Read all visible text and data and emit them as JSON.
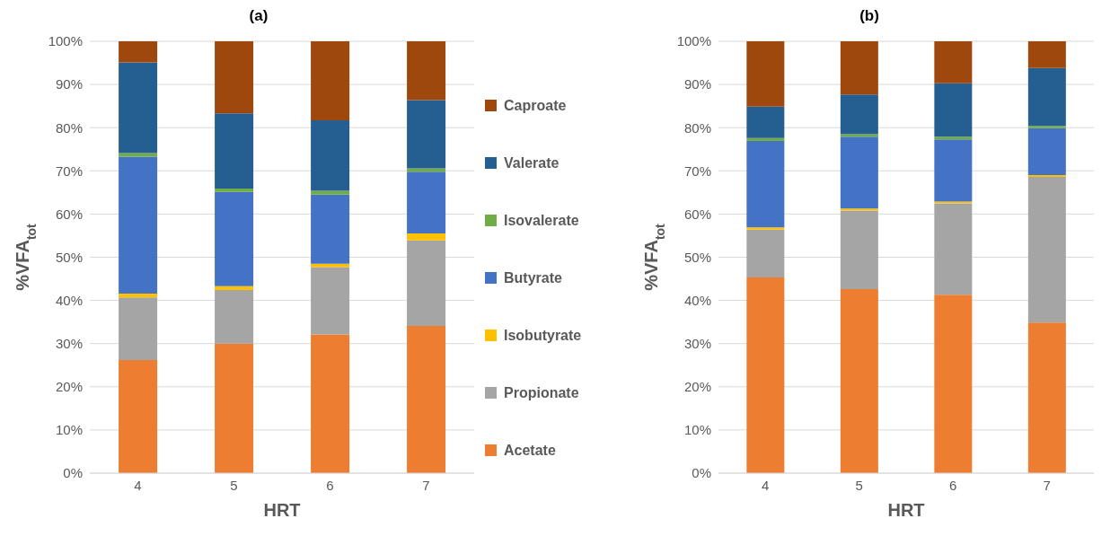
{
  "chart_data": [
    {
      "type": "bar",
      "title": "(a)",
      "xlabel": "HRT",
      "ylabel": "%VFA$_{tot}$",
      "categories": [
        "4",
        "5",
        "6",
        "7"
      ],
      "stacked": true,
      "legend": "right",
      "grid": "y",
      "ylim": [
        0,
        100
      ],
      "yticks": [
        {
          "value": 0,
          "label": "0%"
        },
        {
          "value": 10,
          "label": "10%"
        },
        {
          "value": 20,
          "label": "20%"
        },
        {
          "value": 30,
          "label": "30%"
        },
        {
          "value": 40,
          "label": "40%"
        },
        {
          "value": 50,
          "label": "50%"
        },
        {
          "value": 60,
          "label": "60%"
        },
        {
          "value": 70,
          "label": "70%"
        },
        {
          "value": 80,
          "label": "80%"
        },
        {
          "value": 90,
          "label": "90%"
        },
        {
          "value": 100,
          "label": "100%"
        }
      ],
      "series": [
        {
          "name": "Acetate",
          "color": "#ed7d31",
          "values": [
            26.2,
            30.0,
            32.1,
            34.1
          ]
        },
        {
          "name": "Propionate",
          "color": "#a5a5a5",
          "values": [
            14.5,
            12.4,
            15.6,
            19.8
          ]
        },
        {
          "name": "Isobutyrate",
          "color": "#ffc000",
          "values": [
            0.9,
            0.9,
            0.8,
            1.6
          ]
        },
        {
          "name": "Butyrate",
          "color": "#4472c4",
          "values": [
            31.7,
            21.8,
            16.0,
            14.3
          ]
        },
        {
          "name": "Isovalerate",
          "color": "#70ad47",
          "values": [
            0.8,
            0.8,
            0.9,
            0.8
          ]
        },
        {
          "name": "Valerate",
          "color": "#255e91",
          "values": [
            21.0,
            17.4,
            16.3,
            15.8
          ]
        },
        {
          "name": "Caproate",
          "color": "#9e480e",
          "values": [
            4.9,
            16.7,
            18.3,
            13.6
          ]
        }
      ]
    },
    {
      "type": "bar",
      "title": "(b)",
      "xlabel": "HRT",
      "ylabel": "%VFA$_{tot}$",
      "categories": [
        "4",
        "5",
        "6",
        "7"
      ],
      "stacked": true,
      "grid": "y",
      "ylim": [
        0,
        100
      ],
      "yticks": [
        {
          "value": 0,
          "label": "0%"
        },
        {
          "value": 10,
          "label": "10%"
        },
        {
          "value": 20,
          "label": "20%"
        },
        {
          "value": 30,
          "label": "30%"
        },
        {
          "value": 40,
          "label": "40%"
        },
        {
          "value": 50,
          "label": "50%"
        },
        {
          "value": 60,
          "label": "60%"
        },
        {
          "value": 70,
          "label": "70%"
        },
        {
          "value": 80,
          "label": "80%"
        },
        {
          "value": 90,
          "label": "90%"
        },
        {
          "value": 100,
          "label": "100%"
        }
      ],
      "series": [
        {
          "color": "#ed7d31",
          "values": [
            45.3,
            42.6,
            41.3,
            34.9
          ]
        },
        {
          "color": "#a5a5a5",
          "values": [
            11.1,
            18.2,
            21.2,
            33.7
          ]
        },
        {
          "color": "#ffc000",
          "values": [
            0.5,
            0.5,
            0.4,
            0.4
          ]
        },
        {
          "color": "#4472c4",
          "values": [
            20.0,
            16.6,
            14.4,
            10.9
          ]
        },
        {
          "color": "#70ad47",
          "values": [
            0.7,
            0.6,
            0.6,
            0.5
          ]
        },
        {
          "color": "#255e91",
          "values": [
            7.3,
            9.2,
            12.4,
            13.4
          ]
        },
        {
          "color": "#9e480e",
          "values": [
            15.1,
            12.3,
            9.7,
            6.2
          ]
        }
      ]
    }
  ]
}
